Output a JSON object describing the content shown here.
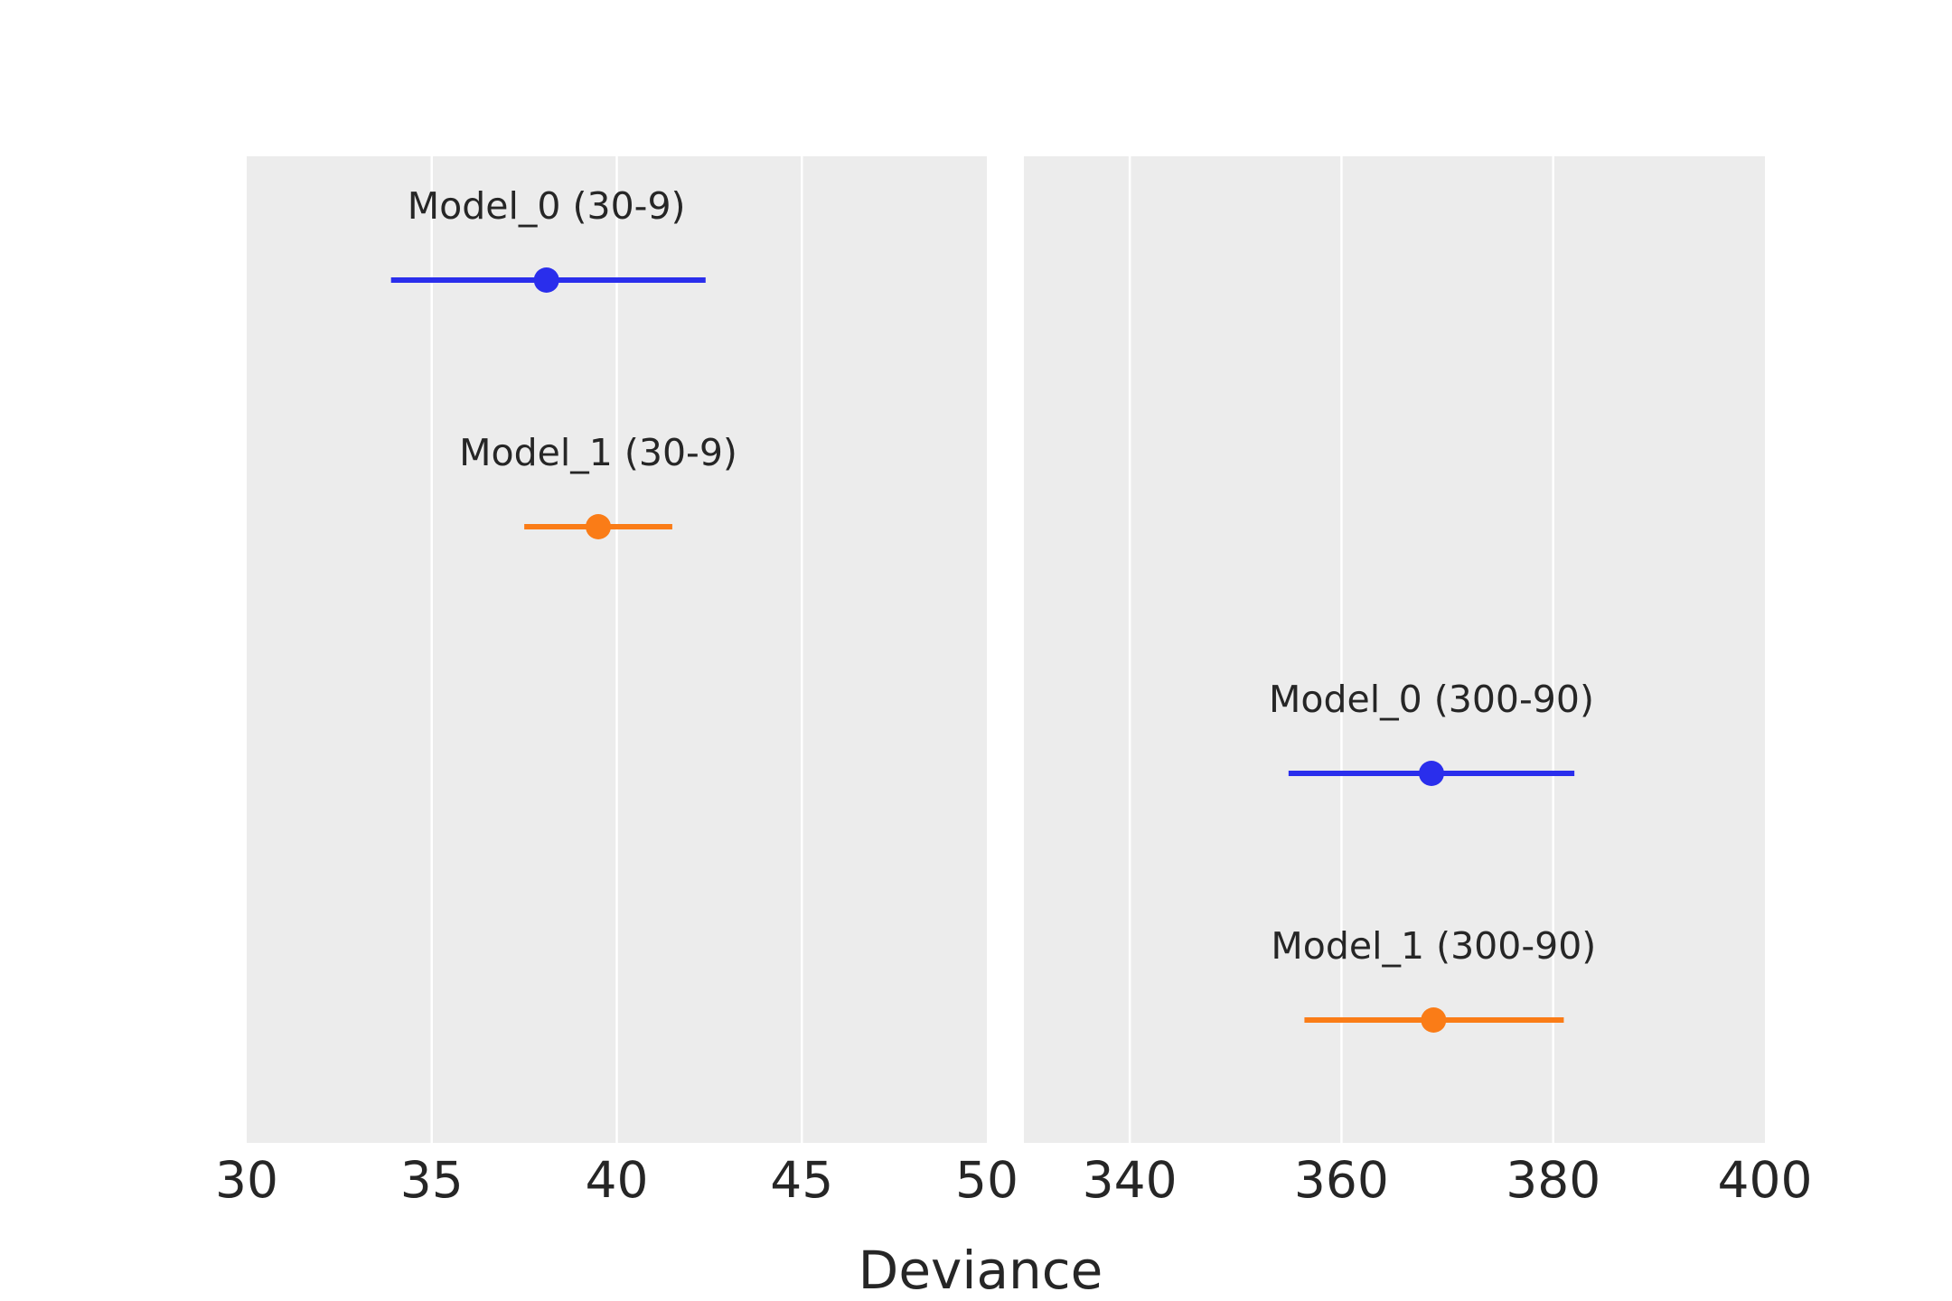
{
  "chart_data": {
    "type": "forest",
    "xlabel": "Deviance",
    "grid": true,
    "colors": {
      "Model_0": "#2a2eec",
      "Model_1": "#fa7c17",
      "panel_bg": "#ececec",
      "grid": "#ffffff"
    },
    "panels": [
      {
        "xlim": [
          30,
          50
        ],
        "xticks": [
          30,
          35,
          40,
          45,
          50
        ],
        "rows": [
          {
            "label": "Model_0 (30-9)",
            "model": "Model_0",
            "center": 38.1,
            "low": 33.9,
            "high": 42.4
          },
          {
            "label": "Model_1 (30-9)",
            "model": "Model_1",
            "center": 39.5,
            "low": 37.5,
            "high": 41.5
          }
        ]
      },
      {
        "xlim": [
          330,
          400
        ],
        "xticks": [
          340,
          360,
          380,
          400
        ],
        "rows": [
          {
            "label": "Model_0 (300-90)",
            "model": "Model_0",
            "center": 368.5,
            "low": 355,
            "high": 382
          },
          {
            "label": "Model_1 (300-90)",
            "model": "Model_1",
            "center": 368.7,
            "low": 356.5,
            "high": 381
          }
        ]
      }
    ]
  }
}
